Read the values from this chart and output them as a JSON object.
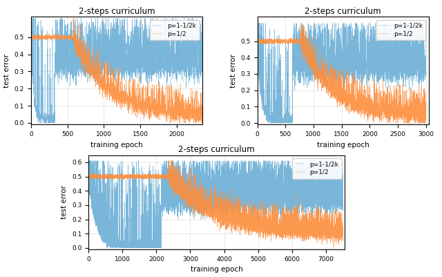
{
  "title": "2-steps curriculum",
  "xlabel": "training epoch",
  "ylabel": "test error",
  "legend_labels": [
    "p=1-1/2k",
    "p=1/2"
  ],
  "blue_color": "#6aaed6",
  "orange_color": "#fd8d3c",
  "subplot1": {
    "xlim": [
      0,
      2350
    ],
    "ylim": [
      -0.01,
      0.62
    ],
    "xticks": [
      0,
      500,
      1000,
      1500,
      2000
    ],
    "yticks": [
      0.0,
      0.1,
      0.2,
      0.3,
      0.4,
      0.5
    ],
    "n_epochs": 2350,
    "switch_blue": 330,
    "switch_orange": 580,
    "orange_final": 0.04
  },
  "subplot2": {
    "xlim": [
      0,
      3050
    ],
    "ylim": [
      -0.01,
      0.65
    ],
    "xticks": [
      0,
      500,
      1000,
      1500,
      2000,
      2500,
      3000
    ],
    "yticks": [
      0.0,
      0.1,
      0.2,
      0.3,
      0.4,
      0.5
    ],
    "n_epochs": 3000,
    "switch_blue": 630,
    "switch_orange": 770,
    "orange_final": 0.04
  },
  "subplot3": {
    "xlim": [
      0,
      7550
    ],
    "ylim": [
      -0.01,
      0.65
    ],
    "xticks": [
      0,
      1000,
      2000,
      3000,
      4000,
      5000,
      6000,
      7000
    ],
    "yticks": [
      0.0,
      0.1,
      0.2,
      0.3,
      0.4,
      0.5,
      0.6
    ],
    "n_epochs": 7500,
    "switch_blue": 2150,
    "switch_orange": 2350,
    "orange_final": 0.1
  }
}
